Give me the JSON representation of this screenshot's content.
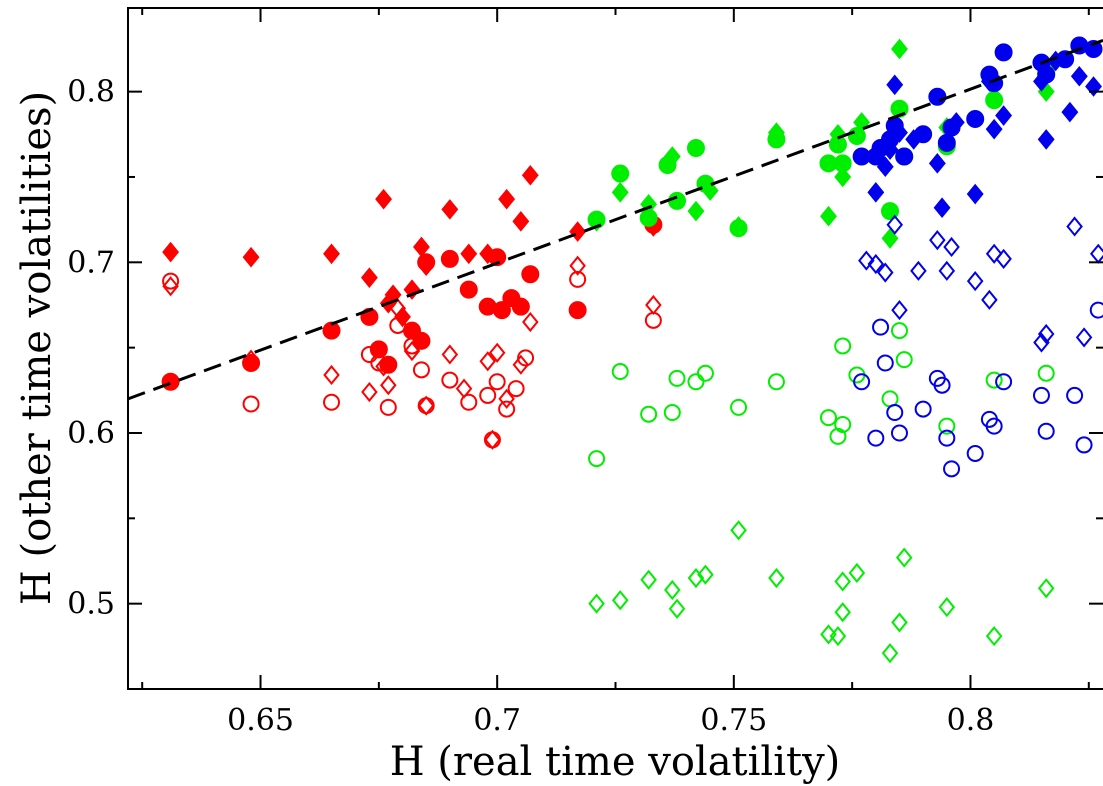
{
  "chart_data": {
    "type": "scatter",
    "xlabel": "H (real time volatility)",
    "ylabel": "H (other time volatilities)",
    "xlim": [
      0.622,
      0.828
    ],
    "ylim": [
      0.45,
      0.849
    ],
    "xticks": [
      0.65,
      0.7,
      0.75,
      0.8
    ],
    "xtick_labels": [
      "0.65",
      "0.7",
      "0.75",
      "0.8"
    ],
    "yticks": [
      0.5,
      0.6,
      0.7,
      0.8
    ],
    "ytick_labels": [
      "0.5",
      "0.6",
      "0.7",
      "0.8"
    ],
    "grid": false,
    "legend": "none",
    "fit_line": {
      "style": "dashed",
      "color": "#000000",
      "points": [
        [
          0.622,
          0.62
        ],
        [
          0.828,
          0.83
        ]
      ]
    },
    "series": [
      {
        "color": "#ff0000",
        "marker": "filled-diamond",
        "points": [
          [
            0.631,
            0.706
          ],
          [
            0.648,
            0.703
          ],
          [
            0.665,
            0.705
          ],
          [
            0.673,
            0.691
          ],
          [
            0.676,
            0.737
          ],
          [
            0.678,
            0.681
          ],
          [
            0.682,
            0.684
          ],
          [
            0.684,
            0.709
          ],
          [
            0.685,
            0.698
          ],
          [
            0.69,
            0.731
          ],
          [
            0.694,
            0.705
          ],
          [
            0.698,
            0.705
          ],
          [
            0.702,
            0.737
          ],
          [
            0.705,
            0.724
          ],
          [
            0.707,
            0.751
          ],
          [
            0.717,
            0.718
          ],
          [
            0.733,
            0.721
          ],
          [
            0.677,
            0.676
          ],
          [
            0.68,
            0.668
          ]
        ]
      },
      {
        "color": "#ff0000",
        "marker": "filled-circle",
        "points": [
          [
            0.631,
            0.63
          ],
          [
            0.648,
            0.641
          ],
          [
            0.665,
            0.66
          ],
          [
            0.673,
            0.668
          ],
          [
            0.675,
            0.649
          ],
          [
            0.677,
            0.64
          ],
          [
            0.682,
            0.66
          ],
          [
            0.684,
            0.654
          ],
          [
            0.685,
            0.7
          ],
          [
            0.69,
            0.702
          ],
          [
            0.694,
            0.684
          ],
          [
            0.698,
            0.674
          ],
          [
            0.7,
            0.703
          ],
          [
            0.701,
            0.672
          ],
          [
            0.703,
            0.679
          ],
          [
            0.705,
            0.674
          ],
          [
            0.707,
            0.693
          ],
          [
            0.717,
            0.672
          ],
          [
            0.733,
            0.722
          ]
        ]
      },
      {
        "color": "#ff0000",
        "marker": "open-circle",
        "points": [
          [
            0.631,
            0.689
          ],
          [
            0.648,
            0.617
          ],
          [
            0.665,
            0.618
          ],
          [
            0.673,
            0.646
          ],
          [
            0.675,
            0.641
          ],
          [
            0.677,
            0.615
          ],
          [
            0.679,
            0.663
          ],
          [
            0.682,
            0.651
          ],
          [
            0.684,
            0.637
          ],
          [
            0.685,
            0.616
          ],
          [
            0.69,
            0.631
          ],
          [
            0.694,
            0.618
          ],
          [
            0.698,
            0.622
          ],
          [
            0.699,
            0.596
          ],
          [
            0.7,
            0.63
          ],
          [
            0.702,
            0.614
          ],
          [
            0.704,
            0.626
          ],
          [
            0.706,
            0.644
          ],
          [
            0.717,
            0.69
          ],
          [
            0.733,
            0.666
          ]
        ]
      },
      {
        "color": "#ff0000",
        "marker": "open-diamond",
        "points": [
          [
            0.631,
            0.686
          ],
          [
            0.648,
            0.643
          ],
          [
            0.665,
            0.634
          ],
          [
            0.673,
            0.624
          ],
          [
            0.676,
            0.639
          ],
          [
            0.677,
            0.628
          ],
          [
            0.679,
            0.673
          ],
          [
            0.682,
            0.648
          ],
          [
            0.685,
            0.616
          ],
          [
            0.69,
            0.646
          ],
          [
            0.693,
            0.626
          ],
          [
            0.698,
            0.642
          ],
          [
            0.699,
            0.596
          ],
          [
            0.7,
            0.647
          ],
          [
            0.702,
            0.62
          ],
          [
            0.705,
            0.64
          ],
          [
            0.707,
            0.665
          ],
          [
            0.717,
            0.698
          ],
          [
            0.733,
            0.675
          ]
        ]
      },
      {
        "color": "#00ee00",
        "marker": "filled-diamond",
        "points": [
          [
            0.721,
            0.724
          ],
          [
            0.726,
            0.741
          ],
          [
            0.732,
            0.734
          ],
          [
            0.737,
            0.762
          ],
          [
            0.742,
            0.73
          ],
          [
            0.745,
            0.742
          ],
          [
            0.751,
            0.721
          ],
          [
            0.759,
            0.776
          ],
          [
            0.77,
            0.727
          ],
          [
            0.772,
            0.775
          ],
          [
            0.773,
            0.75
          ],
          [
            0.777,
            0.782
          ],
          [
            0.783,
            0.714
          ],
          [
            0.785,
            0.825
          ],
          [
            0.795,
            0.779
          ],
          [
            0.805,
            0.797
          ],
          [
            0.816,
            0.8
          ]
        ]
      },
      {
        "color": "#00ee00",
        "marker": "filled-circle",
        "points": [
          [
            0.721,
            0.725
          ],
          [
            0.726,
            0.752
          ],
          [
            0.732,
            0.726
          ],
          [
            0.736,
            0.757
          ],
          [
            0.738,
            0.736
          ],
          [
            0.742,
            0.767
          ],
          [
            0.744,
            0.746
          ],
          [
            0.751,
            0.72
          ],
          [
            0.759,
            0.772
          ],
          [
            0.77,
            0.758
          ],
          [
            0.772,
            0.769
          ],
          [
            0.773,
            0.758
          ],
          [
            0.776,
            0.774
          ],
          [
            0.783,
            0.73
          ],
          [
            0.785,
            0.79
          ],
          [
            0.786,
            0.762
          ],
          [
            0.795,
            0.768
          ],
          [
            0.805,
            0.795
          ],
          [
            0.816,
            0.811
          ]
        ]
      },
      {
        "color": "#00ee00",
        "marker": "open-circle",
        "points": [
          [
            0.721,
            0.585
          ],
          [
            0.726,
            0.636
          ],
          [
            0.732,
            0.611
          ],
          [
            0.737,
            0.612
          ],
          [
            0.738,
            0.632
          ],
          [
            0.742,
            0.63
          ],
          [
            0.744,
            0.635
          ],
          [
            0.751,
            0.615
          ],
          [
            0.759,
            0.63
          ],
          [
            0.77,
            0.609
          ],
          [
            0.772,
            0.598
          ],
          [
            0.773,
            0.605
          ],
          [
            0.773,
            0.651
          ],
          [
            0.776,
            0.634
          ],
          [
            0.783,
            0.62
          ],
          [
            0.785,
            0.66
          ],
          [
            0.786,
            0.643
          ],
          [
            0.795,
            0.604
          ],
          [
            0.805,
            0.631
          ],
          [
            0.816,
            0.635
          ]
        ]
      },
      {
        "color": "#00ee00",
        "marker": "open-diamond",
        "points": [
          [
            0.721,
            0.5
          ],
          [
            0.726,
            0.502
          ],
          [
            0.732,
            0.514
          ],
          [
            0.737,
            0.508
          ],
          [
            0.738,
            0.497
          ],
          [
            0.742,
            0.515
          ],
          [
            0.744,
            0.517
          ],
          [
            0.751,
            0.543
          ],
          [
            0.759,
            0.515
          ],
          [
            0.77,
            0.482
          ],
          [
            0.772,
            0.481
          ],
          [
            0.773,
            0.495
          ],
          [
            0.773,
            0.513
          ],
          [
            0.776,
            0.518
          ],
          [
            0.783,
            0.471
          ],
          [
            0.785,
            0.489
          ],
          [
            0.786,
            0.527
          ],
          [
            0.795,
            0.498
          ],
          [
            0.805,
            0.481
          ],
          [
            0.816,
            0.509
          ]
        ]
      },
      {
        "color": "#0000ee",
        "marker": "filled-diamond",
        "points": [
          [
            0.78,
            0.741
          ],
          [
            0.782,
            0.756
          ],
          [
            0.783,
            0.766
          ],
          [
            0.784,
            0.804
          ],
          [
            0.785,
            0.776
          ],
          [
            0.788,
            0.772
          ],
          [
            0.793,
            0.758
          ],
          [
            0.794,
            0.732
          ],
          [
            0.797,
            0.782
          ],
          [
            0.801,
            0.74
          ],
          [
            0.804,
            0.806
          ],
          [
            0.805,
            0.778
          ],
          [
            0.807,
            0.786
          ],
          [
            0.815,
            0.806
          ],
          [
            0.816,
            0.772
          ],
          [
            0.818,
            0.818
          ],
          [
            0.821,
            0.788
          ],
          [
            0.823,
            0.809
          ],
          [
            0.826,
            0.803
          ]
        ]
      },
      {
        "color": "#0000ee",
        "marker": "filled-circle",
        "points": [
          [
            0.777,
            0.762
          ],
          [
            0.78,
            0.762
          ],
          [
            0.781,
            0.767
          ],
          [
            0.783,
            0.772
          ],
          [
            0.784,
            0.78
          ],
          [
            0.786,
            0.762
          ],
          [
            0.79,
            0.775
          ],
          [
            0.793,
            0.797
          ],
          [
            0.795,
            0.77
          ],
          [
            0.796,
            0.779
          ],
          [
            0.801,
            0.784
          ],
          [
            0.804,
            0.81
          ],
          [
            0.805,
            0.805
          ],
          [
            0.807,
            0.823
          ],
          [
            0.815,
            0.817
          ],
          [
            0.816,
            0.81
          ],
          [
            0.82,
            0.819
          ],
          [
            0.823,
            0.827
          ],
          [
            0.826,
            0.825
          ]
        ]
      },
      {
        "color": "#0000ee",
        "marker": "open-circle",
        "points": [
          [
            0.777,
            0.63
          ],
          [
            0.78,
            0.597
          ],
          [
            0.781,
            0.662
          ],
          [
            0.782,
            0.641
          ],
          [
            0.784,
            0.612
          ],
          [
            0.785,
            0.6
          ],
          [
            0.79,
            0.614
          ],
          [
            0.793,
            0.632
          ],
          [
            0.794,
            0.628
          ],
          [
            0.795,
            0.597
          ],
          [
            0.796,
            0.579
          ],
          [
            0.801,
            0.588
          ],
          [
            0.804,
            0.608
          ],
          [
            0.805,
            0.604
          ],
          [
            0.807,
            0.63
          ],
          [
            0.815,
            0.622
          ],
          [
            0.816,
            0.601
          ],
          [
            0.822,
            0.622
          ],
          [
            0.824,
            0.593
          ],
          [
            0.827,
            0.672
          ]
        ]
      },
      {
        "color": "#0000ee",
        "marker": "open-diamond",
        "points": [
          [
            0.778,
            0.701
          ],
          [
            0.78,
            0.699
          ],
          [
            0.782,
            0.694
          ],
          [
            0.784,
            0.722
          ],
          [
            0.785,
            0.672
          ],
          [
            0.789,
            0.695
          ],
          [
            0.793,
            0.713
          ],
          [
            0.795,
            0.695
          ],
          [
            0.796,
            0.709
          ],
          [
            0.801,
            0.689
          ],
          [
            0.804,
            0.678
          ],
          [
            0.805,
            0.705
          ],
          [
            0.807,
            0.702
          ],
          [
            0.815,
            0.653
          ],
          [
            0.816,
            0.658
          ],
          [
            0.822,
            0.721
          ],
          [
            0.824,
            0.656
          ],
          [
            0.827,
            0.705
          ]
        ]
      }
    ]
  }
}
